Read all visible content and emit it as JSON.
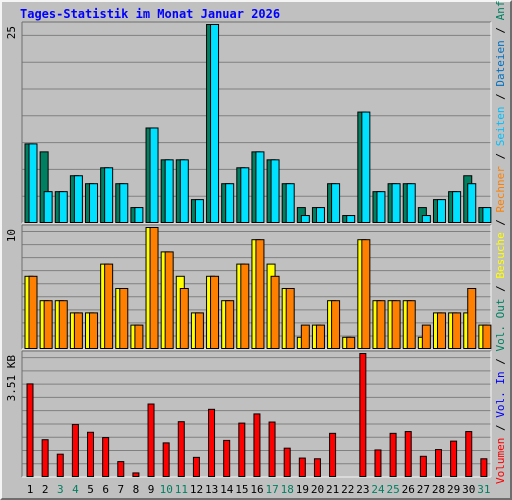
{
  "title": "Tages-Statistik im Monat Januar 2026",
  "legend_right": {
    "top": [
      {
        "label": "Seiten",
        "color": "#00c0ff"
      },
      {
        "label": "Dateien",
        "color": "#0070c0"
      },
      {
        "label": "Anfragen",
        "color": "#008060"
      }
    ],
    "middle": [
      {
        "label": "Besuche",
        "color": "#ffff00"
      },
      {
        "label": "Rechner",
        "color": "#ff8000"
      }
    ],
    "bottom": [
      {
        "label": "Volumen",
        "color": "#ff0000"
      },
      {
        "label": "Vol. In",
        "color": "#0000ff"
      },
      {
        "label": "Vol. Out",
        "color": "#008060"
      }
    ],
    "separator": " / "
  },
  "colors": {
    "anfragen": "#008060",
    "seiten": "#00e0ff",
    "besuche": "#ffff00",
    "rechner": "#ff8000",
    "volumen": "#ff0000",
    "weekend_label": "#008060",
    "weekday_label": "#000000",
    "plot_bg": "#c0c0c0",
    "grid": "#808080"
  },
  "chart_data": [
    {
      "type": "bar",
      "name": "top",
      "ymax_label": "25",
      "ylim": [
        0,
        25
      ],
      "categories": [
        "1",
        "2",
        "3",
        "4",
        "5",
        "6",
        "7",
        "8",
        "9",
        "10",
        "11",
        "12",
        "13",
        "14",
        "15",
        "16",
        "17",
        "18",
        "19",
        "20",
        "21",
        "22",
        "23",
        "24",
        "25",
        "26",
        "27",
        "28",
        "29",
        "30",
        "31"
      ],
      "series": [
        {
          "name": "Anfragen",
          "values": [
            10,
            9,
            4,
            6,
            5,
            7,
            5,
            2,
            12,
            8,
            8,
            3,
            25,
            5,
            7,
            9,
            8,
            5,
            2,
            2,
            5,
            1,
            14,
            4,
            5,
            5,
            2,
            3,
            4,
            6,
            2
          ]
        },
        {
          "name": "Seiten",
          "values": [
            10,
            4,
            4,
            6,
            5,
            7,
            5,
            2,
            12,
            8,
            8,
            3,
            25,
            5,
            7,
            9,
            8,
            5,
            1,
            2,
            5,
            1,
            14,
            4,
            5,
            5,
            1,
            3,
            4,
            5,
            2
          ]
        }
      ]
    },
    {
      "type": "bar",
      "name": "middle",
      "ymax_label": "10",
      "ylim": [
        0,
        10
      ],
      "categories": [
        "1",
        "2",
        "3",
        "4",
        "5",
        "6",
        "7",
        "8",
        "9",
        "10",
        "11",
        "12",
        "13",
        "14",
        "15",
        "16",
        "17",
        "18",
        "19",
        "20",
        "21",
        "22",
        "23",
        "24",
        "25",
        "26",
        "27",
        "28",
        "29",
        "30",
        "31"
      ],
      "series": [
        {
          "name": "Besuche",
          "values": [
            6,
            4,
            4,
            3,
            3,
            7,
            5,
            2,
            10,
            8,
            6,
            3,
            6,
            4,
            7,
            9,
            7,
            5,
            1,
            2,
            4,
            1,
            9,
            4,
            4,
            4,
            1,
            3,
            3,
            3,
            2
          ]
        },
        {
          "name": "Rechner",
          "values": [
            6,
            4,
            4,
            3,
            3,
            7,
            5,
            2,
            10,
            8,
            5,
            3,
            6,
            4,
            7,
            9,
            6,
            5,
            2,
            2,
            4,
            1,
            9,
            4,
            4,
            4,
            2,
            3,
            3,
            5,
            2
          ]
        }
      ]
    },
    {
      "type": "bar",
      "name": "bottom",
      "ymax_label": "3.51 KB",
      "ylim": [
        0,
        3.51
      ],
      "categories": [
        "1",
        "2",
        "3",
        "4",
        "5",
        "6",
        "7",
        "8",
        "9",
        "10",
        "11",
        "12",
        "13",
        "14",
        "15",
        "16",
        "17",
        "18",
        "19",
        "20",
        "21",
        "22",
        "23",
        "24",
        "25",
        "26",
        "27",
        "28",
        "29",
        "30",
        "31"
      ],
      "series": [
        {
          "name": "Volumen",
          "values": [
            2.65,
            1.07,
            0.66,
            1.5,
            1.28,
            1.13,
            0.45,
            0.13,
            2.08,
            0.98,
            1.58,
            0.57,
            1.93,
            1.05,
            1.54,
            1.8,
            1.57,
            0.83,
            0.55,
            0.53,
            1.25,
            0,
            3.51,
            0.78,
            1.25,
            1.3,
            0.6,
            0.79,
            1.03,
            1.3,
            0.53
          ]
        }
      ]
    }
  ],
  "day_labels": [
    "1",
    "2",
    "3",
    "4",
    "5",
    "6",
    "7",
    "8",
    "9",
    "10",
    "11",
    "12",
    "13",
    "14",
    "15",
    "16",
    "17",
    "18",
    "19",
    "20",
    "21",
    "22",
    "23",
    "24",
    "25",
    "26",
    "27",
    "28",
    "29",
    "30",
    "31"
  ],
  "weekend_days": [
    3,
    4,
    10,
    11,
    17,
    18,
    24,
    25,
    31
  ]
}
